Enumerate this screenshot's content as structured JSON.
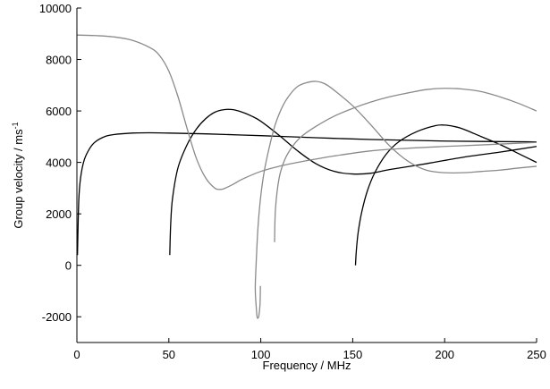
{
  "chart_data": {
    "type": "line",
    "xlabel": "Frequency / MHz",
    "ylabel": "Group velocity / ms",
    "ylabel_superscript": "-1",
    "xlim": [
      0,
      250
    ],
    "ylim": [
      -3000,
      10000
    ],
    "xticks": [
      0,
      50,
      100,
      150,
      200,
      250
    ],
    "yticks": [
      -2000,
      0,
      2000,
      4000,
      6000,
      8000,
      10000
    ],
    "grid": false,
    "series": [
      {
        "color": "#000000",
        "x": [
          0.3,
          1,
          2,
          4,
          7,
          10,
          15,
          20,
          30,
          40,
          50,
          70,
          100,
          130,
          160,
          200,
          250
        ],
        "y": [
          400,
          2500,
          3400,
          4100,
          4550,
          4800,
          5000,
          5080,
          5140,
          5150,
          5140,
          5110,
          5040,
          4960,
          4890,
          4830,
          4800
        ]
      },
      {
        "color": "#000000",
        "x": [
          50.5,
          51,
          52,
          55,
          60,
          65,
          70,
          75,
          80,
          85,
          90,
          95,
          100,
          110,
          120,
          130,
          140,
          150,
          160,
          170,
          190,
          210,
          230,
          250
        ],
        "y": [
          400,
          1600,
          2600,
          3800,
          4700,
          5300,
          5700,
          5950,
          6050,
          6050,
          5950,
          5800,
          5600,
          5050,
          4450,
          3950,
          3650,
          3550,
          3580,
          3720,
          3950,
          4200,
          4400,
          4620
        ]
      },
      {
        "color": "#000000",
        "x": [
          151.5,
          152,
          153,
          155,
          158,
          162,
          168,
          175,
          185,
          195,
          200,
          205,
          210,
          220,
          230,
          240,
          250
        ],
        "y": [
          0,
          600,
          1300,
          2100,
          2900,
          3600,
          4300,
          4800,
          5200,
          5430,
          5450,
          5400,
          5300,
          5000,
          4700,
          4350,
          4000
        ]
      },
      {
        "color": "#8a8a8a",
        "x": [
          0,
          10,
          20,
          30,
          40,
          45,
          50,
          55,
          60,
          65,
          70,
          75,
          78,
          80,
          85,
          90,
          100,
          110,
          120,
          140,
          160,
          180,
          200,
          220,
          250
        ],
        "y": [
          8950,
          8930,
          8880,
          8750,
          8450,
          8150,
          7550,
          6550,
          5300,
          4150,
          3400,
          3000,
          2950,
          2980,
          3150,
          3350,
          3650,
          3850,
          4000,
          4250,
          4450,
          4550,
          4620,
          4680,
          4780
        ]
      },
      {
        "color": "#8a8a8a",
        "x": [
          99.8,
          99.6,
          99,
          98.5,
          98,
          97.5,
          97,
          97.5,
          98.5,
          100,
          102,
          105,
          108,
          112,
          116,
          120,
          125,
          130,
          135,
          140,
          150,
          160,
          170,
          180,
          190,
          200,
          210,
          220,
          230,
          240,
          250
        ],
        "y": [
          -800,
          -1500,
          -1950,
          -2050,
          -2000,
          -1600,
          -900,
          100,
          1500,
          2700,
          3700,
          4700,
          5500,
          6200,
          6650,
          6950,
          7100,
          7150,
          7050,
          6800,
          6200,
          5450,
          4650,
          4050,
          3700,
          3600,
          3600,
          3650,
          3700,
          3780,
          3850
        ]
      },
      {
        "color": "#8a8a8a",
        "x": [
          107.5,
          108,
          110,
          113,
          117,
          122,
          130,
          140,
          150,
          160,
          170,
          180,
          190,
          200,
          210,
          220,
          230,
          240,
          250
        ],
        "y": [
          900,
          2200,
          3400,
          4100,
          4600,
          5000,
          5400,
          5800,
          6100,
          6350,
          6550,
          6700,
          6830,
          6880,
          6850,
          6750,
          6550,
          6300,
          6000
        ]
      }
    ]
  }
}
